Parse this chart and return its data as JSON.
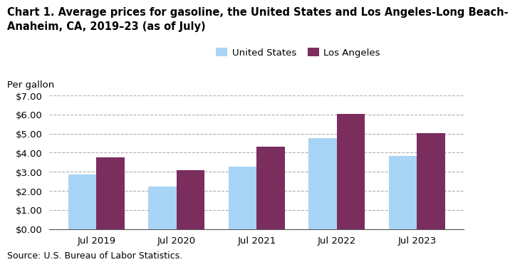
{
  "title_line1": "Chart 1. Average prices for gasoline, the United States and Los Angeles-Long Beach-",
  "title_line2": "Anaheim, CA, 2019–23 (as of July)",
  "ylabel_text": "Per gallon",
  "source": "Source: U.S. Bureau of Labor Statistics.",
  "categories": [
    "Jul 2019",
    "Jul 2020",
    "Jul 2021",
    "Jul 2022",
    "Jul 2023"
  ],
  "us_values": [
    2.85,
    2.22,
    3.28,
    4.77,
    3.83
  ],
  "la_values": [
    3.75,
    3.1,
    4.33,
    6.02,
    5.01
  ],
  "us_color": "#a8d4f5",
  "la_color": "#7b2d5e",
  "ylim": [
    0,
    7.0
  ],
  "yticks": [
    0.0,
    1.0,
    2.0,
    3.0,
    4.0,
    5.0,
    6.0,
    7.0
  ],
  "legend_labels": [
    "United States",
    "Los Angeles"
  ],
  "bar_width": 0.35,
  "background_color": "#ffffff",
  "grid_color": "#b0b0b0",
  "title_fontsize": 10.5,
  "axis_fontsize": 9.5,
  "legend_fontsize": 9.5,
  "source_fontsize": 9
}
